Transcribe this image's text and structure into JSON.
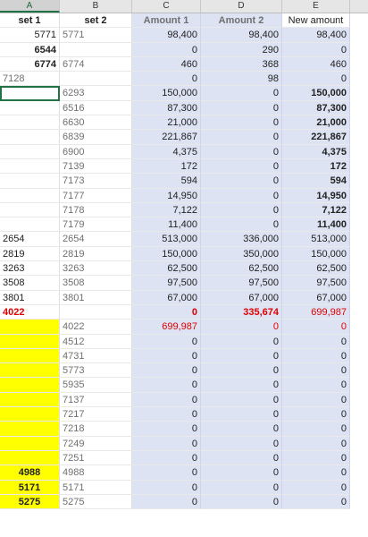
{
  "columns": [
    "A",
    "B",
    "C",
    "D",
    "E"
  ],
  "active_column": "A",
  "header": {
    "a": "set 1",
    "b": "set 2",
    "c": "Amount 1",
    "d": "Amount 2",
    "e": "New amount"
  },
  "rows": [
    {
      "a": "5771",
      "b": "5771",
      "c": "98,400",
      "d": "98,400",
      "e": "98,400"
    },
    {
      "a": "6544",
      "b": "",
      "c": "0",
      "d": "290",
      "e": "0"
    },
    {
      "a": "6774",
      "b": "6774",
      "c": "460",
      "d": "368",
      "e": "460"
    },
    {
      "a": "7128",
      "b": "",
      "c": "0",
      "d": "98",
      "e": "0"
    },
    {
      "a": "",
      "b": "6293",
      "c": "150,000",
      "d": "0",
      "e": "150,000"
    },
    {
      "a": "",
      "b": "6516",
      "c": "87,300",
      "d": "0",
      "e": "87,300"
    },
    {
      "a": "",
      "b": "6630",
      "c": "21,000",
      "d": "0",
      "e": "21,000"
    },
    {
      "a": "",
      "b": "6839",
      "c": "221,867",
      "d": "0",
      "e": "221,867"
    },
    {
      "a": "",
      "b": "6900",
      "c": "4,375",
      "d": "0",
      "e": "4,375"
    },
    {
      "a": "",
      "b": "7139",
      "c": "172",
      "d": "0",
      "e": "172"
    },
    {
      "a": "",
      "b": "7173",
      "c": "594",
      "d": "0",
      "e": "594"
    },
    {
      "a": "",
      "b": "7177",
      "c": "14,950",
      "d": "0",
      "e": "14,950"
    },
    {
      "a": "",
      "b": "7178",
      "c": "7,122",
      "d": "0",
      "e": "7,122"
    },
    {
      "a": "",
      "b": "7179",
      "c": "11,400",
      "d": "0",
      "e": "11,400"
    },
    {
      "a": "2654",
      "b": "2654",
      "c": "513,000",
      "d": "336,000",
      "e": "513,000"
    },
    {
      "a": "2819",
      "b": "2819",
      "c": "150,000",
      "d": "350,000",
      "e": "150,000"
    },
    {
      "a": "3263",
      "b": "3263",
      "c": "62,500",
      "d": "62,500",
      "e": "62,500"
    },
    {
      "a": "3508",
      "b": "3508",
      "c": "97,500",
      "d": "97,500",
      "e": "97,500"
    },
    {
      "a": "3801",
      "b": "3801",
      "c": "67,000",
      "d": "67,000",
      "e": "67,000"
    },
    {
      "a": "4022",
      "b": "",
      "c": "0",
      "d": "335,674",
      "e": "699,987"
    },
    {
      "a": "",
      "b": "4022",
      "c": "699,987",
      "d": "0",
      "e": "0"
    },
    {
      "a": "",
      "b": "4512",
      "c": "0",
      "d": "0",
      "e": "0"
    },
    {
      "a": "",
      "b": "4731",
      "c": "0",
      "d": "0",
      "e": "0"
    },
    {
      "a": "",
      "b": "5773",
      "c": "0",
      "d": "0",
      "e": "0"
    },
    {
      "a": "",
      "b": "5935",
      "c": "0",
      "d": "0",
      "e": "0"
    },
    {
      "a": "",
      "b": "7137",
      "c": "0",
      "d": "0",
      "e": "0"
    },
    {
      "a": "",
      "b": "7217",
      "c": "0",
      "d": "0",
      "e": "0"
    },
    {
      "a": "",
      "b": "7218",
      "c": "0",
      "d": "0",
      "e": "0"
    },
    {
      "a": "",
      "b": "7249",
      "c": "0",
      "d": "0",
      "e": "0"
    },
    {
      "a": "",
      "b": "7251",
      "c": "0",
      "d": "0",
      "e": "0"
    },
    {
      "a": "4988",
      "b": "4988",
      "c": "0",
      "d": "0",
      "e": "0"
    },
    {
      "a": "5171",
      "b": "5171",
      "c": "0",
      "d": "0",
      "e": "0"
    },
    {
      "a": "5275",
      "b": "5275",
      "c": "0",
      "d": "0",
      "e": "0"
    }
  ],
  "colors": {
    "highlight_fill": "#dde3f3",
    "yellow_fill": "#ffff00",
    "alert_red": "#e00000",
    "excel_green": "#217346"
  }
}
